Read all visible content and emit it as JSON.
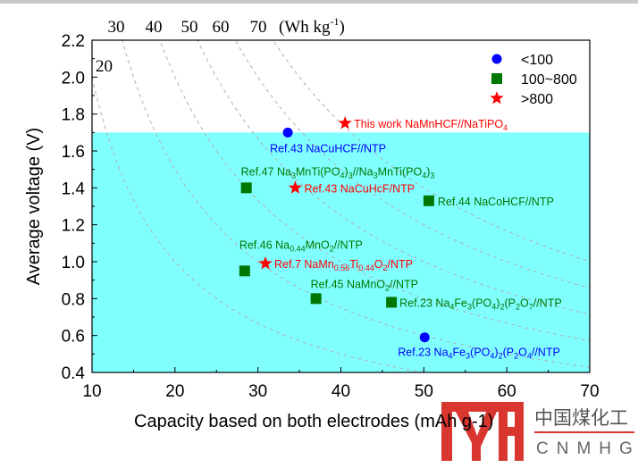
{
  "chart_data": {
    "type": "scatter",
    "xlabel": "Capacity based on both electrodes (mAh g-1)",
    "xlabel_visible": "Capacity based on both electrode",
    "ylabel": "Average voltage (V)",
    "xlim": [
      10,
      70
    ],
    "ylim": [
      0.4,
      2.2
    ],
    "xticks": [
      "10",
      "20",
      "30",
      "40",
      "50",
      "60",
      "70"
    ],
    "yticks": [
      "0.4",
      "0.6",
      "0.8",
      "1.0",
      "1.2",
      "1.4",
      "1.6",
      "1.8",
      "2.0",
      "2.2"
    ],
    "shaded_band": {
      "from": 0.4,
      "to": 1.7,
      "color": "#80ffff"
    },
    "energy_lines": {
      "values": [
        20,
        30,
        40,
        50,
        60,
        70
      ],
      "top_labels": [
        "30",
        "40",
        "50",
        "60",
        "70"
      ],
      "unit_label": "(Wh kg",
      "unit_sup": "-1",
      "unit_close": ")",
      "inner_label": "20"
    },
    "legend": {
      "placement": "top-right",
      "entries": [
        {
          "label": "<100",
          "marker": "circle",
          "color": "#0000ff"
        },
        {
          "label": "100~800",
          "marker": "square",
          "color": "#007700"
        },
        {
          "label": ">800",
          "marker": "star",
          "color": "#ff0000"
        }
      ]
    },
    "points": [
      {
        "x": 33.6,
        "y": 1.7,
        "marker": "circle",
        "color": "#0000ff",
        "label": [
          "Ref.43 NaCuHCF//NTP"
        ],
        "lpos": "below"
      },
      {
        "x": 40.5,
        "y": 1.75,
        "marker": "star",
        "color": "#ff0000",
        "label": [
          "This work NaMnHCF//NaTiPO",
          "4"
        ],
        "lpos": "right"
      },
      {
        "x": 28.6,
        "y": 1.4,
        "marker": "square",
        "color": "#007700",
        "label": [
          "Ref.47 Na",
          "3",
          "MnTi(PO",
          "4",
          ")",
          "3",
          "//Na",
          "3",
          "MnTi(PO",
          "4",
          ")",
          "3"
        ],
        "lpos": "above"
      },
      {
        "x": 34.5,
        "y": 1.4,
        "marker": "star",
        "color": "#ff0000",
        "label": [
          "Ref.43 NaCuHcF/NTP"
        ],
        "lpos": "right"
      },
      {
        "x": 50.6,
        "y": 1.33,
        "marker": "square",
        "color": "#007700",
        "label": [
          "Ref.44 NaCoHCF//NTP"
        ],
        "lpos": "right"
      },
      {
        "x": 28.4,
        "y": 0.95,
        "marker": "square",
        "color": "#007700",
        "label": [
          "Ref.46 Na",
          "0.44",
          "MnO",
          "2",
          "//NTP"
        ],
        "lpos": "above"
      },
      {
        "x": 30.9,
        "y": 0.99,
        "marker": "star",
        "color": "#ff0000",
        "label": [
          "Ref.7 NaMn",
          "0.56",
          "Ti",
          "0.44",
          "O",
          "2",
          "/NTP"
        ],
        "lpos": "right"
      },
      {
        "x": 37.0,
        "y": 0.8,
        "marker": "square",
        "color": "#007700",
        "label": [
          "Ref.45 NaMnO",
          "2",
          "//NTP"
        ],
        "lpos": "above"
      },
      {
        "x": 46.1,
        "y": 0.78,
        "marker": "square",
        "color": "#007700",
        "label": [
          "Ref.23 Na",
          "4",
          "Fe",
          "3",
          "(PO",
          "4",
          ")",
          "2",
          "(P",
          "2",
          "O",
          "7",
          "//NTP"
        ],
        "lpos": "right"
      },
      {
        "x": 50.1,
        "y": 0.59,
        "marker": "circle",
        "color": "#0000ff",
        "label": [
          "Ref.23 Na",
          "4",
          "Fe",
          "3",
          "(PO",
          "4",
          ")",
          "2",
          "(P",
          "2",
          "O",
          "4",
          "//NTP"
        ],
        "lpos": "below"
      }
    ]
  },
  "watermark": {
    "brand": "中国煤化工",
    "latin": "CNMHG"
  }
}
